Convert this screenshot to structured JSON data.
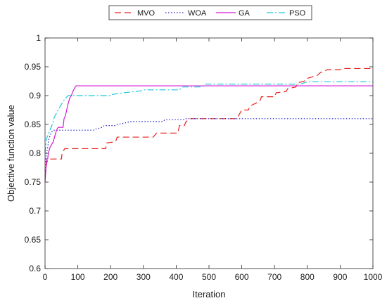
{
  "chart_data": {
    "type": "line",
    "xlabel": "Iteration",
    "ylabel": "Objective function value",
    "xlim": [
      0,
      1000
    ],
    "ylim": [
      0.6,
      1
    ],
    "xticks": [
      0,
      100,
      200,
      300,
      400,
      500,
      600,
      700,
      800,
      900,
      1000
    ],
    "yticks": [
      0.6,
      0.65,
      0.7,
      0.75,
      0.8,
      0.85,
      0.9,
      0.95,
      1
    ],
    "ytick_labels": [
      "0.6",
      "0.65",
      "0.7",
      "0.75",
      "0.8",
      "0.85",
      "0.9",
      "0.95",
      "1"
    ],
    "grid": false,
    "legend_position": "top-center",
    "series": [
      {
        "name": "MVO",
        "color": "#e8201d",
        "style": "dashed",
        "points": [
          [
            0,
            0.76
          ],
          [
            3,
            0.775
          ],
          [
            6,
            0.785
          ],
          [
            10,
            0.79
          ],
          [
            50,
            0.79
          ],
          [
            52,
            0.8
          ],
          [
            60,
            0.808
          ],
          [
            185,
            0.808
          ],
          [
            188,
            0.818
          ],
          [
            215,
            0.82
          ],
          [
            220,
            0.828
          ],
          [
            330,
            0.828
          ],
          [
            340,
            0.835
          ],
          [
            405,
            0.835
          ],
          [
            410,
            0.848
          ],
          [
            425,
            0.848
          ],
          [
            430,
            0.855
          ],
          [
            445,
            0.86
          ],
          [
            585,
            0.86
          ],
          [
            590,
            0.865
          ],
          [
            600,
            0.875
          ],
          [
            620,
            0.875
          ],
          [
            625,
            0.882
          ],
          [
            640,
            0.886
          ],
          [
            655,
            0.89
          ],
          [
            660,
            0.898
          ],
          [
            700,
            0.898
          ],
          [
            705,
            0.905
          ],
          [
            735,
            0.907
          ],
          [
            740,
            0.912
          ],
          [
            765,
            0.915
          ],
          [
            770,
            0.922
          ],
          [
            790,
            0.925
          ],
          [
            800,
            0.93
          ],
          [
            830,
            0.935
          ],
          [
            840,
            0.94
          ],
          [
            855,
            0.943
          ],
          [
            860,
            0.945
          ],
          [
            900,
            0.945
          ],
          [
            905,
            0.947
          ],
          [
            1000,
            0.947
          ]
        ]
      },
      {
        "name": "WOA",
        "color": "#2222cc",
        "style": "dotted",
        "points": [
          [
            0,
            0.77
          ],
          [
            3,
            0.795
          ],
          [
            8,
            0.81
          ],
          [
            12,
            0.825
          ],
          [
            18,
            0.835
          ],
          [
            25,
            0.84
          ],
          [
            150,
            0.84
          ],
          [
            155,
            0.842
          ],
          [
            175,
            0.845
          ],
          [
            180,
            0.848
          ],
          [
            215,
            0.848
          ],
          [
            220,
            0.85
          ],
          [
            240,
            0.852
          ],
          [
            260,
            0.855
          ],
          [
            360,
            0.855
          ],
          [
            365,
            0.858
          ],
          [
            425,
            0.858
          ],
          [
            430,
            0.86
          ],
          [
            1000,
            0.86
          ]
        ]
      },
      {
        "name": "GA",
        "color": "#d41ad4",
        "style": "solid",
        "points": [
          [
            0,
            0.75
          ],
          [
            3,
            0.775
          ],
          [
            5,
            0.79
          ],
          [
            8,
            0.79
          ],
          [
            10,
            0.8
          ],
          [
            15,
            0.81
          ],
          [
            20,
            0.815
          ],
          [
            25,
            0.82
          ],
          [
            30,
            0.83
          ],
          [
            35,
            0.84
          ],
          [
            40,
            0.845
          ],
          [
            55,
            0.845
          ],
          [
            58,
            0.86
          ],
          [
            62,
            0.865
          ],
          [
            66,
            0.875
          ],
          [
            70,
            0.885
          ],
          [
            75,
            0.895
          ],
          [
            80,
            0.9
          ],
          [
            85,
            0.907
          ],
          [
            90,
            0.913
          ],
          [
            95,
            0.917
          ],
          [
            1000,
            0.917
          ]
        ]
      },
      {
        "name": "PSO",
        "color": "#1ac8d8",
        "style": "dashdot",
        "points": [
          [
            0,
            0.8
          ],
          [
            4,
            0.825
          ],
          [
            8,
            0.83
          ],
          [
            15,
            0.84
          ],
          [
            22,
            0.85
          ],
          [
            28,
            0.862
          ],
          [
            35,
            0.87
          ],
          [
            45,
            0.88
          ],
          [
            55,
            0.89
          ],
          [
            62,
            0.895
          ],
          [
            70,
            0.9
          ],
          [
            200,
            0.9
          ],
          [
            205,
            0.902
          ],
          [
            240,
            0.905
          ],
          [
            290,
            0.908
          ],
          [
            300,
            0.91
          ],
          [
            410,
            0.91
          ],
          [
            420,
            0.915
          ],
          [
            480,
            0.915
          ],
          [
            490,
            0.92
          ],
          [
            780,
            0.92
          ],
          [
            790,
            0.922
          ],
          [
            800,
            0.924
          ],
          [
            1000,
            0.924
          ]
        ]
      }
    ]
  }
}
